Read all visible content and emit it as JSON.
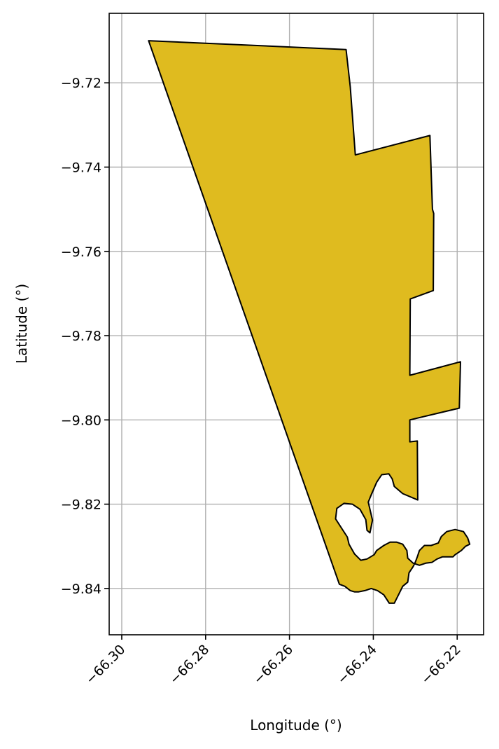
{
  "chart_data": {
    "type": "map",
    "xlabel": "Longitude (°)",
    "ylabel": "Latitude (°)",
    "xlim": [
      -66.303,
      -66.2137
    ],
    "ylim": [
      -9.851,
      -9.7035
    ],
    "xticks": [
      -66.3,
      -66.28,
      -66.26,
      -66.24,
      -66.22
    ],
    "xtick_labels": [
      "−66.30",
      "−66.28",
      "−66.26",
      "−66.24",
      "−66.22"
    ],
    "yticks": [
      -9.72,
      -9.74,
      -9.76,
      -9.78,
      -9.8,
      -9.82,
      -9.84
    ],
    "ytick_labels": [
      "−9.72",
      "−9.74",
      "−9.76",
      "−9.78",
      "−9.80",
      "−9.82",
      "−9.84"
    ],
    "grid": true,
    "polygon": {
      "fill": "#dfbb1f",
      "edge": "#000000",
      "coordinates": [
        [
          -66.2936,
          -9.71
        ],
        [
          -66.2465,
          -9.7121
        ],
        [
          -66.2455,
          -9.721
        ],
        [
          -66.2443,
          -9.7371
        ],
        [
          -66.2265,
          -9.7325
        ],
        [
          -66.2259,
          -9.75
        ],
        [
          -66.2256,
          -9.751
        ],
        [
          -66.2257,
          -9.7693
        ],
        [
          -66.2312,
          -9.7713
        ],
        [
          -66.2313,
          -9.7894
        ],
        [
          -66.2192,
          -9.7862
        ],
        [
          -66.2195,
          -9.7972
        ],
        [
          -66.2313,
          -9.8
        ],
        [
          -66.2313,
          -9.8052
        ],
        [
          -66.2295,
          -9.805
        ],
        [
          -66.2294,
          -9.819
        ],
        [
          -66.233,
          -9.8175
        ],
        [
          -66.235,
          -9.8158
        ],
        [
          -66.2355,
          -9.814
        ],
        [
          -66.2363,
          -9.8128
        ],
        [
          -66.238,
          -9.813
        ],
        [
          -66.2392,
          -9.8148
        ],
        [
          -66.2405,
          -9.8178
        ],
        [
          -66.2412,
          -9.8195
        ],
        [
          -66.2402,
          -9.8238
        ],
        [
          -66.2408,
          -9.8268
        ],
        [
          -66.2415,
          -9.8262
        ],
        [
          -66.2418,
          -9.8237
        ],
        [
          -66.2432,
          -9.8212
        ],
        [
          -66.245,
          -9.82
        ],
        [
          -66.247,
          -9.8198
        ],
        [
          -66.2487,
          -9.821
        ],
        [
          -66.249,
          -9.8235
        ],
        [
          -66.2475,
          -9.8258
        ],
        [
          -66.2462,
          -9.8278
        ],
        [
          -66.2458,
          -9.8295
        ],
        [
          -66.2445,
          -9.8318
        ],
        [
          -66.243,
          -9.8333
        ],
        [
          -66.2415,
          -9.833
        ],
        [
          -66.2398,
          -9.832
        ],
        [
          -66.2392,
          -9.831
        ],
        [
          -66.2375,
          -9.8298
        ],
        [
          -66.236,
          -9.829
        ],
        [
          -66.2345,
          -9.829
        ],
        [
          -66.233,
          -9.8295
        ],
        [
          -66.232,
          -9.831
        ],
        [
          -66.2318,
          -9.8328
        ],
        [
          -66.2305,
          -9.834
        ],
        [
          -66.229,
          -9.8345
        ],
        [
          -66.2275,
          -9.834
        ],
        [
          -66.226,
          -9.8338
        ],
        [
          -66.2248,
          -9.833
        ],
        [
          -66.2235,
          -9.8325
        ],
        [
          -66.2222,
          -9.8325
        ],
        [
          -66.221,
          -9.8325
        ],
        [
          -66.2205,
          -9.832
        ],
        [
          -66.219,
          -9.831
        ],
        [
          -66.218,
          -9.83
        ],
        [
          -66.217,
          -9.8295
        ],
        [
          -66.2175,
          -9.828
        ],
        [
          -66.2185,
          -9.8265
        ],
        [
          -66.2205,
          -9.826
        ],
        [
          -66.2225,
          -9.8265
        ],
        [
          -66.2238,
          -9.8277
        ],
        [
          -66.2245,
          -9.8292
        ],
        [
          -66.2262,
          -9.8298
        ],
        [
          -66.2278,
          -9.8298
        ],
        [
          -66.229,
          -9.831
        ],
        [
          -66.2295,
          -9.8325
        ],
        [
          -66.23,
          -9.8338
        ],
        [
          -66.2305,
          -9.8348
        ],
        [
          -66.2315,
          -9.8363
        ],
        [
          -66.2318,
          -9.8385
        ],
        [
          -66.233,
          -9.8395
        ],
        [
          -66.234,
          -9.8415
        ],
        [
          -66.235,
          -9.8435
        ],
        [
          -66.2362,
          -9.8435
        ],
        [
          -66.2375,
          -9.8415
        ],
        [
          -66.239,
          -9.8405
        ],
        [
          -66.2405,
          -9.84
        ],
        [
          -66.242,
          -9.8405
        ],
        [
          -66.2435,
          -9.8408
        ],
        [
          -66.2445,
          -9.8408
        ],
        [
          -66.2455,
          -9.8405
        ],
        [
          -66.2468,
          -9.8395
        ],
        [
          -66.2481,
          -9.839
        ]
      ]
    }
  }
}
